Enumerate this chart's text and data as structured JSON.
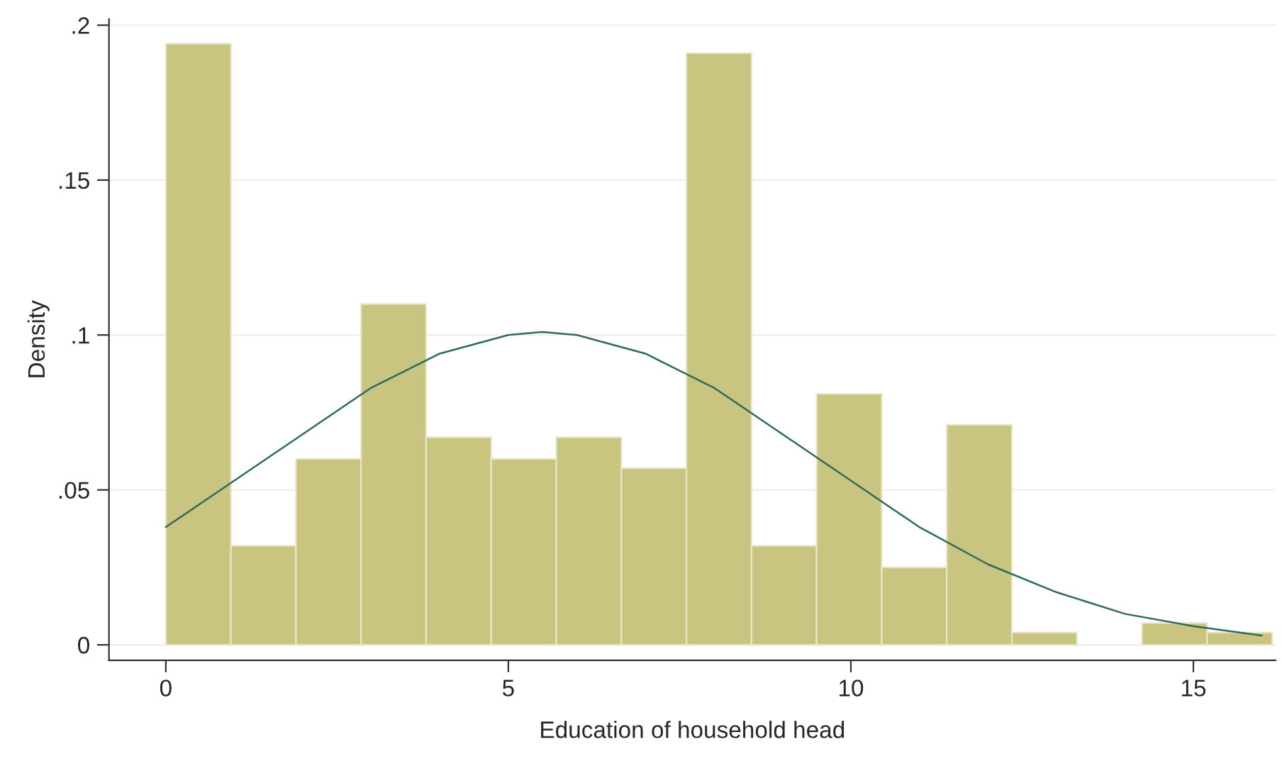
{
  "chart_data": {
    "type": "histogram",
    "xlabel": "Education of household head",
    "ylabel": "Density",
    "bins": [
      0,
      0.95,
      1.9,
      2.85,
      3.8,
      4.75,
      5.7,
      6.65,
      7.6,
      8.55,
      9.5,
      10.45,
      11.4,
      12.35,
      13.3,
      14.25,
      15.2,
      16.15
    ],
    "values": [
      0.194,
      0.032,
      0.06,
      0.11,
      0.067,
      0.06,
      0.067,
      0.057,
      0.191,
      0.032,
      0.081,
      0.025,
      0.071,
      0.004,
      0,
      0.007,
      0.004
    ],
    "color": "#c9c47f",
    "series": [
      {
        "type": "line",
        "color": "#2e6b5e",
        "x": [
          0,
          1,
          2,
          3,
          4,
          5,
          5.5,
          6,
          7,
          8,
          9,
          10,
          11,
          12,
          13,
          14,
          15,
          16
        ],
        "values": [
          0.038,
          0.053,
          0.068,
          0.083,
          0.094,
          0.1,
          0.101,
          0.1,
          0.094,
          0.083,
          0.068,
          0.053,
          0.038,
          0.026,
          0.017,
          0.01,
          0.006,
          0.003
        ]
      }
    ],
    "xlim": [
      -0.83,
      16.2
    ],
    "ylim": [
      -0.005,
      0.202
    ],
    "xticks": [
      0,
      5,
      10,
      15
    ],
    "yticks": [
      {
        "value": 0,
        "label": "0"
      },
      {
        "value": 0.05,
        "label": ".05"
      },
      {
        "value": 0.1,
        "label": ".1"
      },
      {
        "value": 0.15,
        "label": ".15"
      },
      {
        "value": 0.2,
        "label": ".2"
      }
    ],
    "grid": "y"
  }
}
